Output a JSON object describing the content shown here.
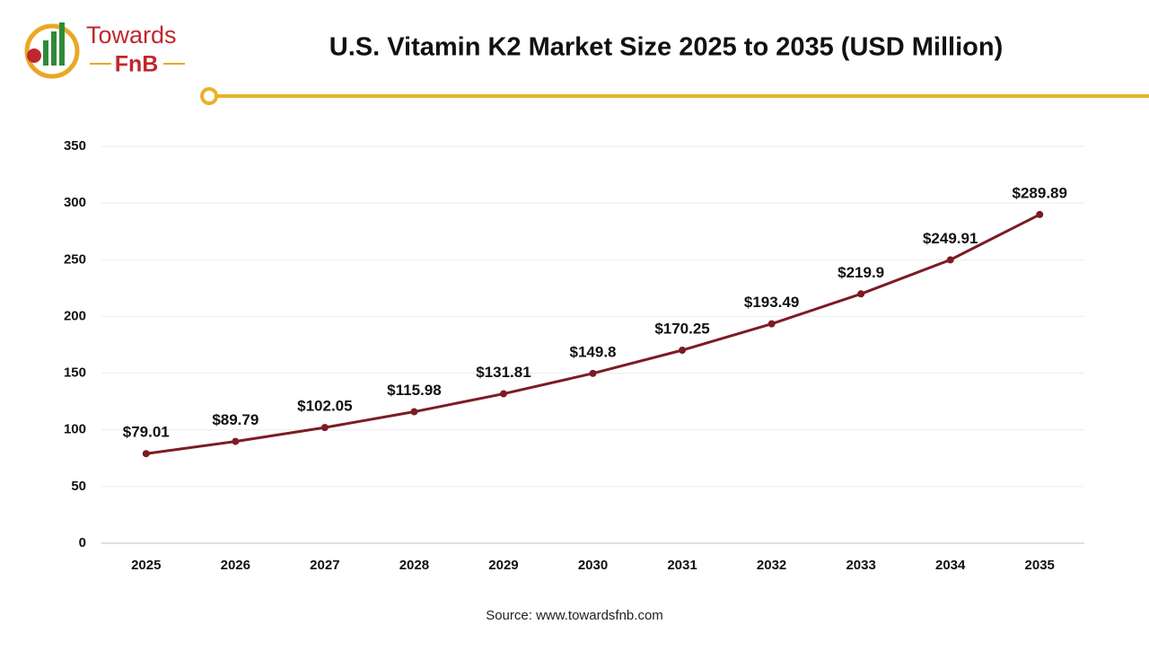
{
  "chart_data": {
    "type": "line",
    "title": "U.S. Vitamin K2 Market Size 2025 to 2035 (USD Million)",
    "logo_text": [
      "Towards",
      "FnB"
    ],
    "source": "Source: www.towardsfnb.com",
    "categories": [
      "2025",
      "2026",
      "2027",
      "2028",
      "2029",
      "2030",
      "2031",
      "2032",
      "2033",
      "2034",
      "2035"
    ],
    "values": [
      79.01,
      89.79,
      102.05,
      115.98,
      131.81,
      149.8,
      170.25,
      193.49,
      219.9,
      249.91,
      289.89
    ],
    "value_labels": [
      "$79.01",
      "$89.79",
      "$102.05",
      "$115.98",
      "$131.81",
      "$149.8",
      "$170.25",
      "$193.49",
      "$219.9",
      "$249.91",
      "$289.89"
    ],
    "color": "#7b1c24",
    "ylim": [
      0,
      350
    ],
    "yticks": [
      0,
      50,
      100,
      150,
      200,
      250,
      300,
      350
    ],
    "grid": true
  }
}
